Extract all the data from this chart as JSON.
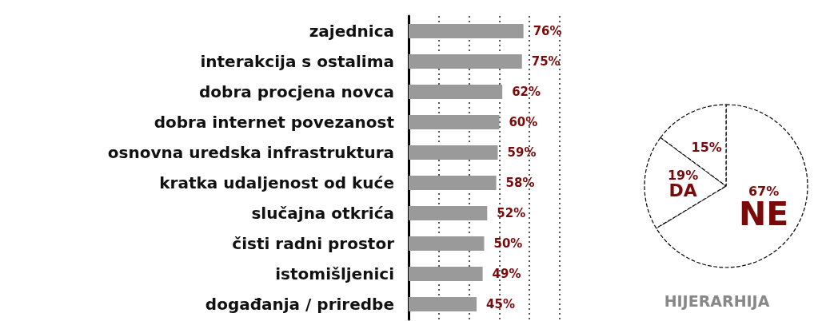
{
  "chart_data": [
    {
      "type": "bar",
      "orientation": "horizontal",
      "categories": [
        "zajednica",
        "interakcija s ostalima",
        "dobra procjena novca",
        "dobra internet povezanost",
        "osnovna uredska infrastruktura",
        "kratka udaljenost od kuće",
        "slučajna otkrića",
        "čisti radni prostor",
        "istomišljenici",
        "događanja / priredbe"
      ],
      "values": [
        76,
        75,
        62,
        60,
        59,
        58,
        52,
        50,
        49,
        45
      ],
      "value_labels": [
        "76%",
        "75%",
        "62%",
        "60%",
        "59%",
        "58%",
        "52%",
        "50%",
        "49%",
        "45%"
      ],
      "color": "#9a9a9a",
      "xlim": [
        0,
        100
      ],
      "xticks": [
        {
          "value": 20,
          "label": null
        },
        {
          "value": 40,
          "label": null
        },
        {
          "value": 60,
          "label": null
        },
        {
          "value": 80,
          "label": null
        },
        {
          "value": 100,
          "label": null
        }
      ],
      "grid": "x",
      "tick_labels": "y"
    },
    {
      "type": "pie",
      "title": "HIJERARHIJA",
      "categories": [
        "NE",
        "DA",
        null
      ],
      "values": [
        67,
        19,
        15
      ],
      "value_labels": [
        "67%",
        "19%",
        "15%"
      ],
      "colors": [
        "#ffffff",
        "#ffffff",
        "#ffffff"
      ]
    }
  ]
}
